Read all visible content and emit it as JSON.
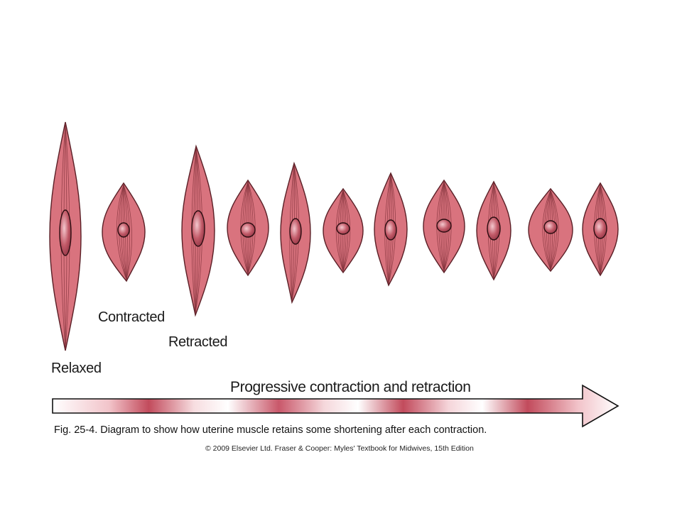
{
  "labels": {
    "relaxed": "Relaxed",
    "contracted": "Contracted",
    "retracted": "Retracted",
    "progress": "Progressive contraction and retraction"
  },
  "caption": "Fig. 25-4. Diagram to show how uterine muscle retains some shortening after each contraction.",
  "copyright": "© 2009 Elsevier Ltd. Fraser & Cooper: Myles' Textbook for Midwives, 15th Edition",
  "colors": {
    "cell_fill": "#d9737e",
    "cell_stroke": "#5a1f26",
    "fibre": "#7d2f38",
    "nucleus": "#b44a58",
    "arrow_band": "#c24b5c",
    "arrow_outline": "#111111"
  },
  "cells": [
    {
      "name": "muscle-cell-relaxed",
      "stage": "Relaxed"
    },
    {
      "name": "muscle-cell-contracted-1",
      "stage": "Contracted"
    },
    {
      "name": "muscle-cell-retracted-1",
      "stage": "Retracted"
    },
    {
      "name": "muscle-cell-contracted-2",
      "stage": "Contracted"
    },
    {
      "name": "muscle-cell-retracted-2",
      "stage": "Retracted"
    },
    {
      "name": "muscle-cell-contracted-3",
      "stage": "Contracted"
    },
    {
      "name": "muscle-cell-retracted-3",
      "stage": "Retracted"
    },
    {
      "name": "muscle-cell-contracted-4",
      "stage": "Contracted"
    },
    {
      "name": "muscle-cell-retracted-4",
      "stage": "Retracted"
    },
    {
      "name": "muscle-cell-contracted-5",
      "stage": "Contracted"
    },
    {
      "name": "muscle-cell-retracted-5",
      "stage": "Retracted"
    }
  ]
}
